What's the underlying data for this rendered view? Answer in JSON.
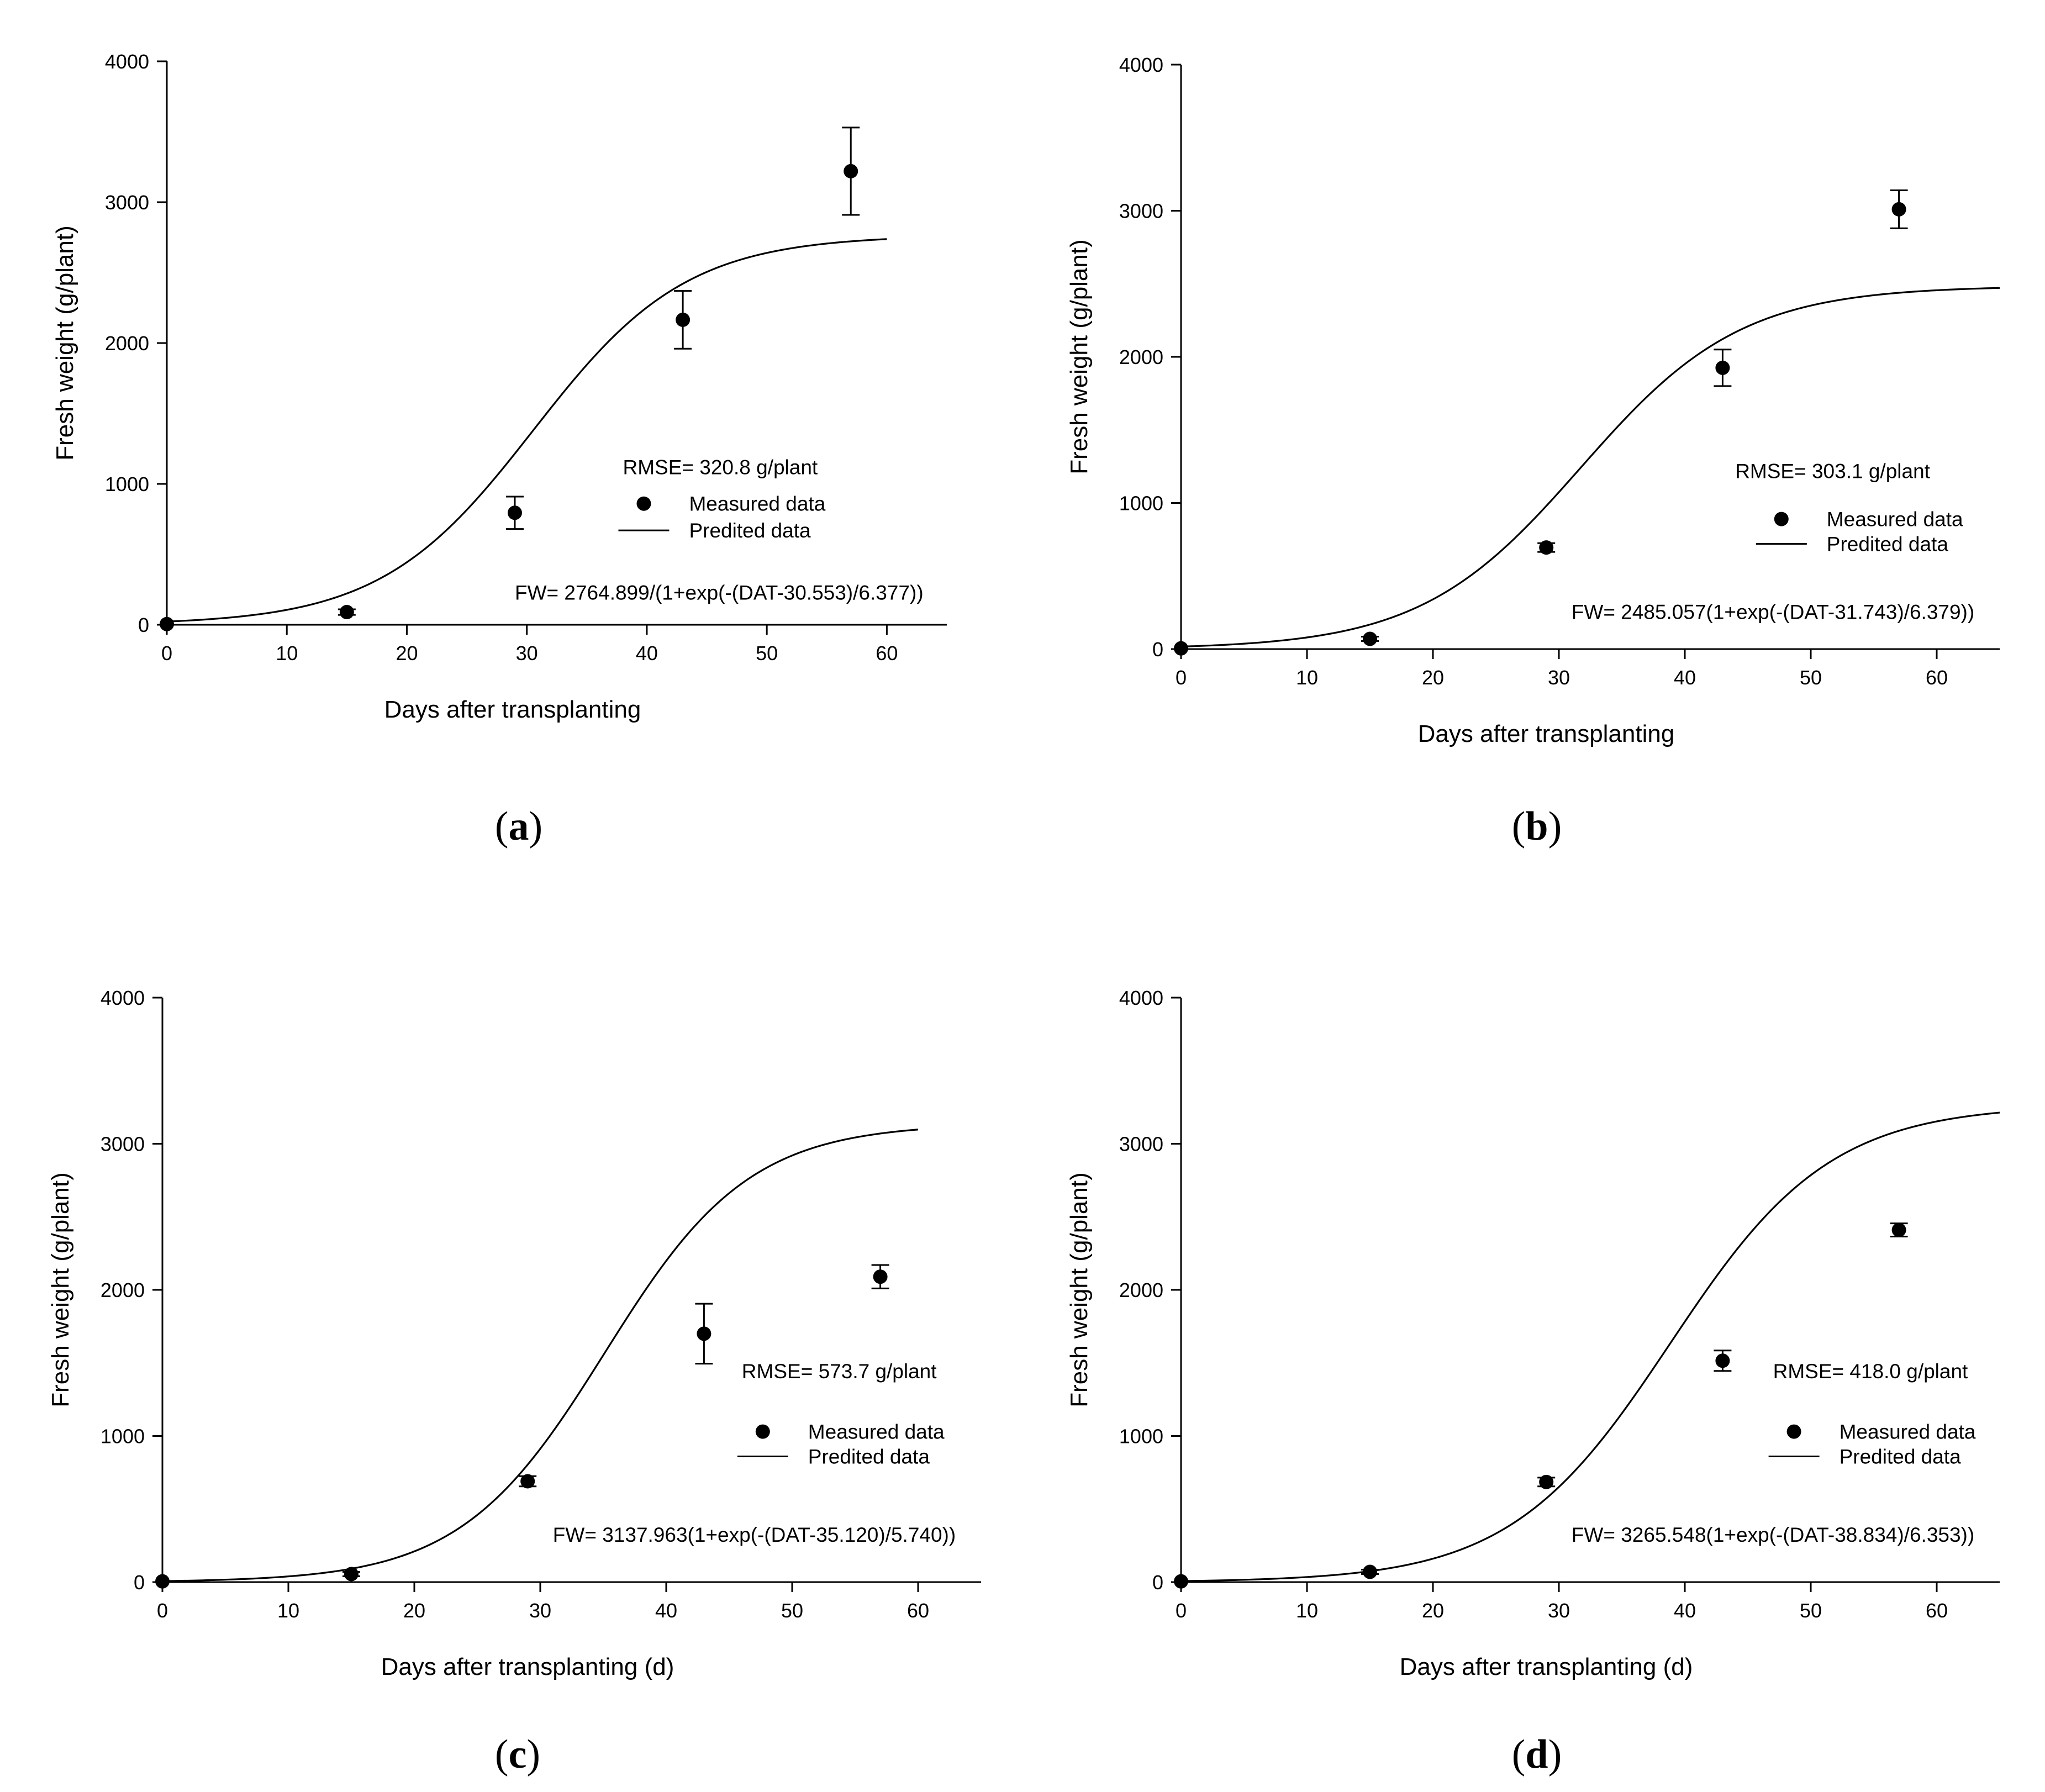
{
  "panels": [
    {
      "id": "a",
      "label": "a",
      "chart_data": {
        "type": "scatter",
        "xlabel": "Days after transplanting",
        "ylabel": "Fresh weight (g/plant)",
        "xlim": [
          0,
          65
        ],
        "ylim": [
          0,
          4000
        ],
        "x_ticks": [
          0,
          10,
          20,
          30,
          40,
          50,
          60
        ],
        "y_ticks": [
          0,
          1000,
          2000,
          3000,
          4000
        ],
        "x_tick_labels": [
          "0",
          "10",
          "20",
          "30",
          "40",
          "50",
          "60"
        ],
        "y_tick_labels": [
          "0",
          "1000",
          "2000",
          "3000",
          "4000"
        ],
        "grid": false,
        "series": [
          {
            "name": "Measured data",
            "kind": "points_with_error_bars",
            "x": [
              0,
              15,
              29,
              43,
              57
            ],
            "y": [
              5,
              90,
              795,
              2165,
              3220
            ],
            "error": [
              0,
              20,
              115,
              205,
              310
            ]
          },
          {
            "name": "Predited data",
            "kind": "logistic_curve",
            "a": 2764.899,
            "x0": 30.553,
            "b": 6.377,
            "x_range": [
              0,
              60
            ]
          }
        ],
        "rmse_text": "RMSE= 320.8 g/plant",
        "equation_text": "FW= 2764.899/(1+exp(-(DAT-30.553)/6.377))",
        "legend": [
          "Measured data",
          "Predited data"
        ],
        "legend_position": "center-right"
      }
    },
    {
      "id": "b",
      "label": "b",
      "chart_data": {
        "type": "scatter",
        "xlabel": "Days after transplanting",
        "ylabel": "Fresh weight (g/plant)",
        "xlim": [
          0,
          65
        ],
        "ylim": [
          0,
          4000
        ],
        "x_ticks": [
          0,
          10,
          20,
          30,
          40,
          50,
          60
        ],
        "y_ticks": [
          0,
          1000,
          2000,
          3000,
          4000
        ],
        "x_tick_labels": [
          "0",
          "10",
          "20",
          "30",
          "40",
          "50",
          "60"
        ],
        "y_tick_labels": [
          "0",
          "1000",
          "2000",
          "3000",
          "4000"
        ],
        "grid": false,
        "series": [
          {
            "name": "Measured data",
            "kind": "points_with_error_bars",
            "x": [
              0,
              15,
              29,
              43,
              57
            ],
            "y": [
              5,
              70,
              695,
              1925,
              3010
            ],
            "error": [
              0,
              15,
              30,
              125,
              130
            ]
          },
          {
            "name": "Predited data",
            "kind": "logistic_curve",
            "a": 2485.057,
            "x0": 31.743,
            "b": 6.379,
            "x_range": [
              0,
              65
            ]
          }
        ],
        "rmse_text": "RMSE= 303.1 g/plant",
        "equation_text": "FW= 2485.057(1+exp(-(DAT-31.743)/6.379))",
        "legend": [
          "Measured data",
          "Predited data"
        ],
        "legend_position": "center-right"
      }
    },
    {
      "id": "c",
      "label": "c",
      "chart_data": {
        "type": "scatter",
        "xlabel": "Days after transplanting (d)",
        "ylabel": "Fresh weight (g/plant)",
        "xlim": [
          0,
          65
        ],
        "ylim": [
          0,
          4000
        ],
        "x_ticks": [
          0,
          10,
          20,
          30,
          40,
          50,
          60
        ],
        "y_ticks": [
          0,
          1000,
          2000,
          3000,
          4000
        ],
        "x_tick_labels": [
          "0",
          "10",
          "20",
          "30",
          "40",
          "50",
          "60"
        ],
        "y_tick_labels": [
          "0",
          "1000",
          "2000",
          "3000",
          "4000"
        ],
        "grid": false,
        "series": [
          {
            "name": "Measured data",
            "kind": "points_with_error_bars",
            "x": [
              0,
              15,
              29,
              43,
              57
            ],
            "y": [
              5,
              55,
              690,
              1700,
              2090
            ],
            "error": [
              0,
              15,
              35,
              205,
              80
            ]
          },
          {
            "name": "Predited data",
            "kind": "logistic_curve",
            "a": 3137.963,
            "x0": 35.12,
            "b": 5.74,
            "x_range": [
              0,
              60
            ]
          }
        ],
        "rmse_text": "RMSE= 573.7 g/plant",
        "equation_text": "FW= 3137.963(1+exp(-(DAT-35.120)/5.740))",
        "legend": [
          "Measured data",
          "Predited data"
        ],
        "legend_position": "center-right"
      }
    },
    {
      "id": "d",
      "label": "d",
      "chart_data": {
        "type": "scatter",
        "xlabel": "Days after transplanting (d)",
        "ylabel": "Fresh weight (g/plant)",
        "xlim": [
          0,
          65
        ],
        "ylim": [
          0,
          4000
        ],
        "x_ticks": [
          0,
          10,
          20,
          30,
          40,
          50,
          60
        ],
        "y_ticks": [
          0,
          1000,
          2000,
          3000,
          4000
        ],
        "x_tick_labels": [
          "0",
          "10",
          "20",
          "30",
          "40",
          "50",
          "60"
        ],
        "y_tick_labels": [
          "0",
          "1000",
          "2000",
          "3000",
          "4000"
        ],
        "grid": false,
        "series": [
          {
            "name": "Measured data",
            "kind": "points_with_error_bars",
            "x": [
              0,
              15,
              29,
              43,
              57
            ],
            "y": [
              5,
              70,
              685,
              1515,
              2410
            ],
            "error": [
              0,
              15,
              30,
              70,
              45
            ]
          },
          {
            "name": "Predited data",
            "kind": "logistic_curve",
            "a": 3265.548,
            "x0": 38.834,
            "b": 6.353,
            "x_range": [
              0,
              65
            ]
          }
        ],
        "rmse_text": "RMSE= 418.0 g/plant",
        "equation_text": "FW= 3265.548(1+exp(-(DAT-38.834)/6.353))",
        "legend": [
          "Measured data",
          "Predited data"
        ],
        "legend_position": "center-right"
      }
    }
  ]
}
